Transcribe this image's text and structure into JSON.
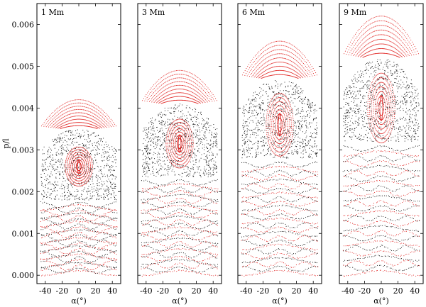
{
  "chart_data": {
    "type": "scatter",
    "ylabel": "p/l",
    "xlabel": "α(°)",
    "x_ticks": [
      -40,
      -20,
      0,
      20,
      40
    ],
    "x_tick_labels": [
      "-40",
      "-20",
      "0",
      "20",
      "40"
    ],
    "y_ticks": [
      0.0,
      0.001,
      0.002,
      0.003,
      0.004,
      0.005,
      0.006
    ],
    "y_tick_labels": [
      "0.000",
      "0.001",
      "0.002",
      "0.003",
      "0.004",
      "0.005",
      "0.006"
    ],
    "xlim": [
      -50,
      50
    ],
    "ylim": [
      -0.0002,
      0.0065
    ],
    "colors": {
      "red": "#e0201e",
      "black": "#111111"
    },
    "panels": [
      {
        "title": "1 Mm",
        "red_top": 0.0042,
        "black_top": 0.0035,
        "black_edge": 0.003,
        "island_center": 0.0026,
        "island_halfheight": 0.00028
      },
      {
        "title": "3 Mm",
        "red_top": 0.0049,
        "black_top": 0.0041,
        "black_edge": 0.0035,
        "island_center": 0.00315,
        "island_halfheight": 0.00035
      },
      {
        "title": "6 Mm",
        "red_top": 0.0056,
        "black_top": 0.0047,
        "black_edge": 0.004,
        "island_center": 0.0036,
        "island_halfheight": 0.00045
      },
      {
        "title": "9 Mm",
        "red_top": 0.0062,
        "black_top": 0.0052,
        "black_edge": 0.0044,
        "island_center": 0.004,
        "island_halfheight": 0.0005
      }
    ]
  }
}
